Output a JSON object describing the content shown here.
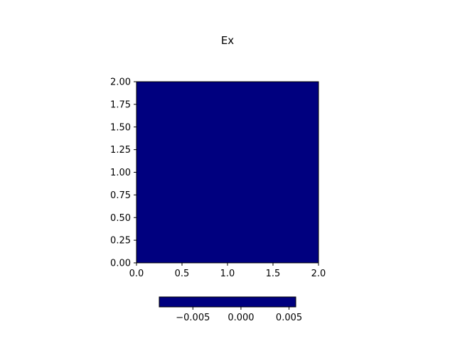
{
  "chart_data": {
    "type": "heatmap",
    "title": "Ex",
    "xlabel": "",
    "ylabel": "",
    "xlim": [
      0.0,
      2.0
    ],
    "ylim": [
      0.0,
      2.0
    ],
    "x_ticks": [
      0.0,
      0.5,
      1.0,
      1.5,
      2.0
    ],
    "x_tick_labels": [
      "0.0",
      "0.5",
      "1.0",
      "1.5",
      "2.0"
    ],
    "y_ticks": [
      0.0,
      0.25,
      0.5,
      0.75,
      1.0,
      1.25,
      1.5,
      1.75,
      2.0
    ],
    "y_tick_labels": [
      "0.00",
      "0.25",
      "0.50",
      "0.75",
      "1.00",
      "1.25",
      "1.50",
      "1.75",
      "2.00"
    ],
    "grid": false,
    "colormap": "jet",
    "fill_color": "#00007f",
    "colorbar": {
      "orientation": "horizontal",
      "placement": "bottom",
      "range": [
        -0.0085,
        0.0057
      ],
      "ticks": [
        -0.005,
        0.0,
        0.005
      ],
      "tick_labels": [
        "−0.005",
        "0.000",
        "0.005"
      ]
    }
  }
}
